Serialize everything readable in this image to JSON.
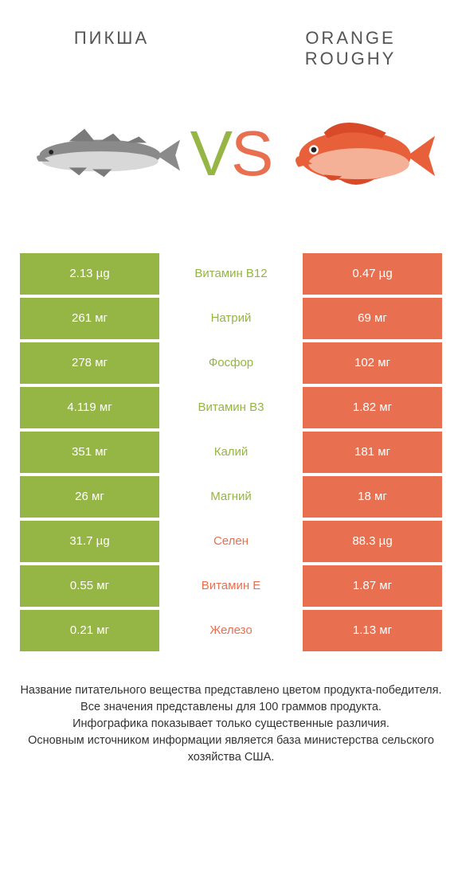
{
  "header": {
    "left_title": "ПИКША",
    "right_title_line1": "ORANGE",
    "right_title_line2": "ROUGHY"
  },
  "vs": {
    "v": "V",
    "s": "S"
  },
  "colors": {
    "left_cell": "#95b544",
    "right_cell": "#e87050",
    "mid_left_winner": "#95b544",
    "mid_right_winner": "#e87050",
    "white": "#ffffff",
    "fish_left_body": "#8a8a8a",
    "fish_left_belly": "#d8d8d8",
    "fish_right_body": "#e8603a",
    "fish_right_belly": "#f5b098"
  },
  "table": {
    "rows": [
      {
        "left": "2.13 µg",
        "label": "Витамин B12",
        "right": "0.47 µg",
        "winner": "left"
      },
      {
        "left": "261 мг",
        "label": "Натрий",
        "right": "69 мг",
        "winner": "left"
      },
      {
        "left": "278 мг",
        "label": "Фосфор",
        "right": "102 мг",
        "winner": "left"
      },
      {
        "left": "4.119 мг",
        "label": "Витамин B3",
        "right": "1.82 мг",
        "winner": "left"
      },
      {
        "left": "351 мг",
        "label": "Калий",
        "right": "181 мг",
        "winner": "left"
      },
      {
        "left": "26 мг",
        "label": "Магний",
        "right": "18 мг",
        "winner": "left"
      },
      {
        "left": "31.7 µg",
        "label": "Селен",
        "right": "88.3 µg",
        "winner": "right"
      },
      {
        "left": "0.55 мг",
        "label": "Витамин E",
        "right": "1.87 мг",
        "winner": "right"
      },
      {
        "left": "0.21 мг",
        "label": "Железо",
        "right": "1.13 мг",
        "winner": "right"
      }
    ]
  },
  "footer": {
    "line1": "Название питательного вещества представлено цветом продукта-победителя.",
    "line2": "Все значения представлены для 100 граммов продукта.",
    "line3": "Инфографика показывает только существенные различия.",
    "line4": "Основным источником информации является база министерства сельского хозяйства США."
  }
}
